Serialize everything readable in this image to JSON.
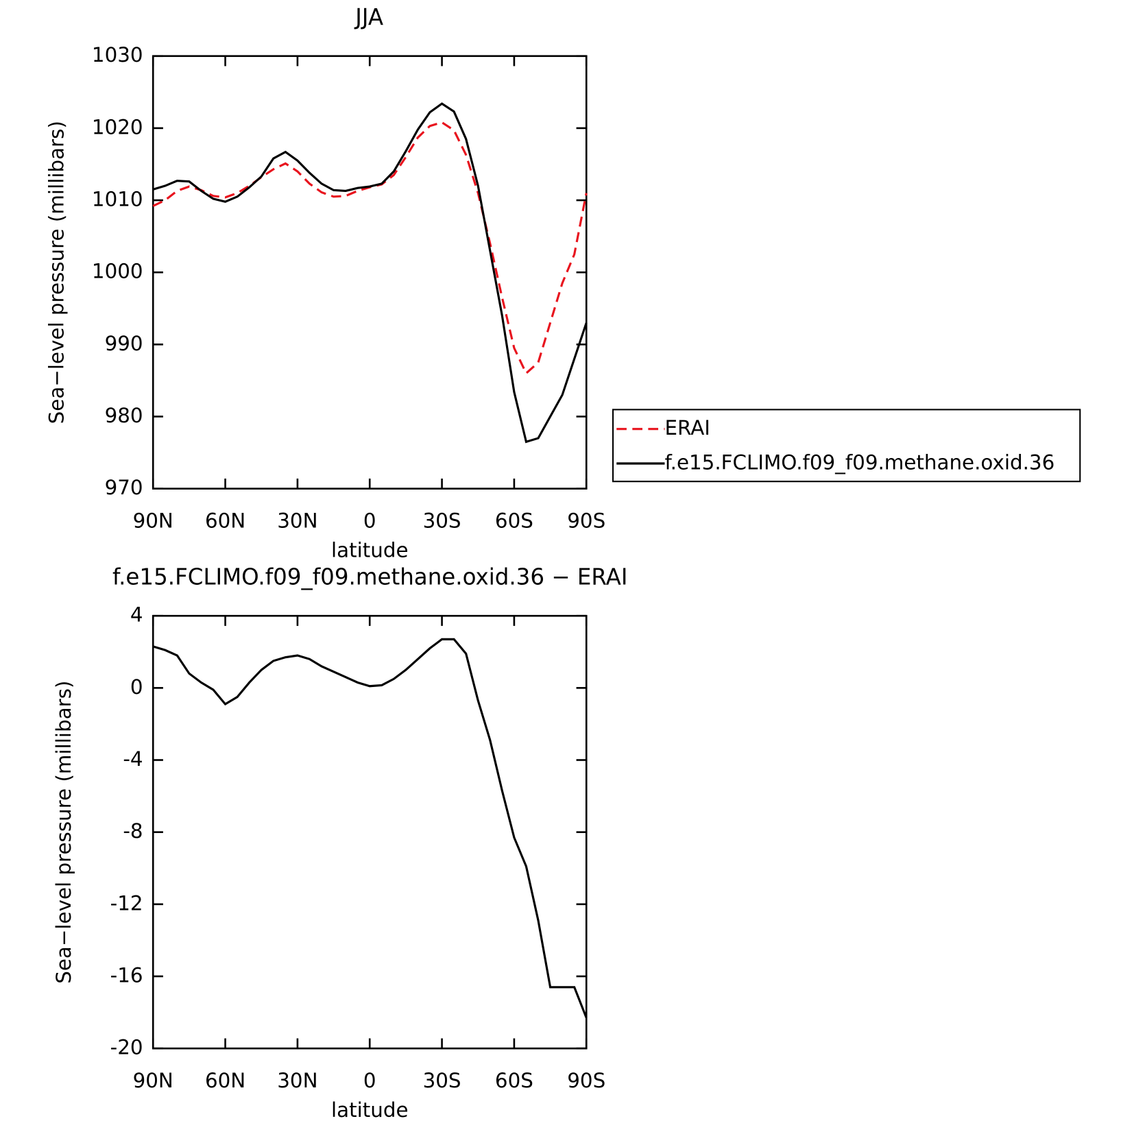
{
  "chart_data": [
    {
      "type": "line",
      "title": "JJA",
      "xlabel": "latitude",
      "ylabel": "Sea−level pressure (millibars)",
      "x": [
        90,
        85,
        80,
        75,
        70,
        65,
        60,
        55,
        50,
        45,
        40,
        35,
        30,
        25,
        20,
        15,
        10,
        5,
        0,
        -5,
        -10,
        -15,
        -20,
        -25,
        -30,
        -35,
        -40,
        -45,
        -50,
        -55,
        -60,
        -65,
        -70,
        -75,
        -80,
        -85,
        -90
      ],
      "xlim": [
        90,
        -90
      ],
      "xticks": [
        {
          "value": 90,
          "label": "90N"
        },
        {
          "value": 60,
          "label": "60N"
        },
        {
          "value": 30,
          "label": "30N"
        },
        0,
        {
          "value": -30,
          "label": "30S"
        },
        {
          "value": -60,
          "label": "60S"
        },
        {
          "value": -90,
          "label": "90S"
        }
      ],
      "ylim": [
        970,
        1030
      ],
      "yticks": [
        970,
        980,
        990,
        1000,
        1010,
        1020,
        1030
      ],
      "legend": "right",
      "series": [
        {
          "name": "ERAI",
          "color": "#e8141e",
          "dash": true,
          "values": [
            1009.2,
            1010,
            1011.3,
            1011.9,
            1011.4,
            1010.6,
            1010.4,
            1011,
            1012,
            1013.2,
            1014.3,
            1015.1,
            1014,
            1012.3,
            1011.1,
            1010.5,
            1010.6,
            1011.3,
            1011.8,
            1012.2,
            1013.5,
            1016,
            1018.7,
            1020.3,
            1020.8,
            1019.7,
            1016.3,
            1011,
            1004,
            996.5,
            989.5,
            986,
            987.5,
            993,
            998.5,
            1002.5,
            1011
          ]
        },
        {
          "name": "f.e15.FCLIMO.f09_f09.methane.oxid.36",
          "color": "#000000",
          "dash": false,
          "values": [
            1011.5,
            1012,
            1012.7,
            1012.6,
            1011.3,
            1010.2,
            1009.8,
            1010.5,
            1011.8,
            1013.3,
            1015.8,
            1016.7,
            1015.5,
            1013.8,
            1012.3,
            1011.4,
            1011.3,
            1011.7,
            1011.9,
            1012.3,
            1014,
            1016.8,
            1019.8,
            1022.2,
            1023.4,
            1022.3,
            1018.5,
            1012,
            1003,
            994,
            983.4,
            976.5,
            977,
            980,
            983,
            988,
            993
          ]
        }
      ]
    },
    {
      "type": "line",
      "title": "f.e15.FCLIMO.f09_f09.methane.oxid.36 − ERAI",
      "xlabel": "latitude",
      "ylabel": "Sea−level pressure (millibars)",
      "x": [
        90,
        85,
        80,
        75,
        70,
        65,
        60,
        55,
        50,
        45,
        40,
        35,
        30,
        25,
        20,
        15,
        10,
        5,
        0,
        -5,
        -10,
        -15,
        -20,
        -25,
        -30,
        -35,
        -40,
        -45,
        -50,
        -55,
        -60,
        -65,
        -70,
        -75,
        -80,
        -85,
        -90
      ],
      "xlim": [
        90,
        -90
      ],
      "xticks": [
        {
          "value": 90,
          "label": "90N"
        },
        {
          "value": 60,
          "label": "60N"
        },
        {
          "value": 30,
          "label": "30N"
        },
        0,
        {
          "value": -30,
          "label": "30S"
        },
        {
          "value": -60,
          "label": "60S"
        },
        {
          "value": -90,
          "label": "90S"
        }
      ],
      "ylim": [
        -20,
        4
      ],
      "yticks": [
        -20,
        -16,
        -12,
        -8,
        -4,
        0,
        4
      ],
      "series": [
        {
          "color": "#000000",
          "values": [
            2.3,
            2.1,
            1.8,
            0.8,
            0.3,
            -0.1,
            -0.9,
            -0.5,
            0.3,
            1,
            1.5,
            1.7,
            1.8,
            1.6,
            1.2,
            0.9,
            0.6,
            0.3,
            0.1,
            0.15,
            0.5,
            1,
            1.6,
            2.2,
            2.7,
            2.7,
            1.9,
            -0.7,
            -2.9,
            -5.7,
            -8.3,
            -9.9,
            -12.9,
            -16.6,
            -16.6,
            -16.6,
            -18.3
          ]
        }
      ]
    }
  ]
}
